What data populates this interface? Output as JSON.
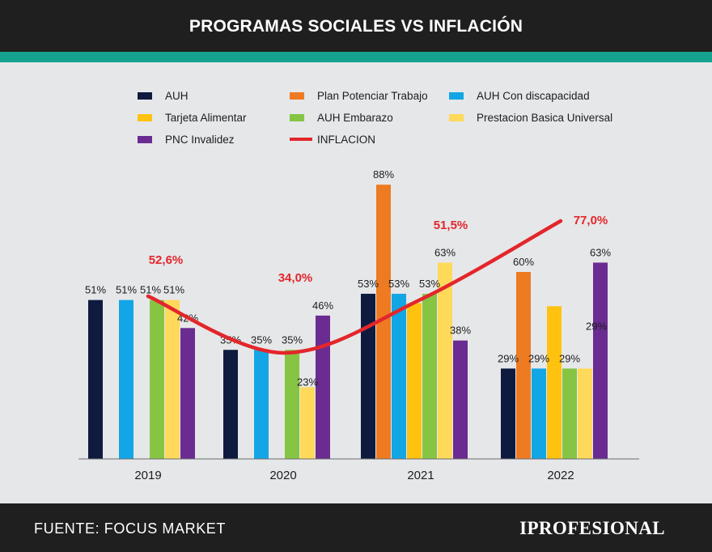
{
  "header": {
    "title": "PROGRAMAS SOCIALES VS INFLACIÓN"
  },
  "footer": {
    "source": "FUENTE: FOCUS MARKET",
    "brand": "IPROFESIONAL"
  },
  "colors": {
    "AUH": "#0e1b3f",
    "Plan Potenciar Trabajo": "#ee7a22",
    "AUH Con discapacidad": "#13a6e6",
    "Tarjeta Alimentar": "#ffc20e",
    "AUH Embarazo": "#86c543",
    "Prestacion Basica Universal": "#ffd95a",
    "PNC Invalidez": "#6a2c91",
    "INFLACION": "#e3262b"
  },
  "chart_data": {
    "type": "bar",
    "title": "PROGRAMAS SOCIALES VS INFLACIÓN",
    "xlabel": "",
    "ylabel": "",
    "categories": [
      "2019",
      "2020",
      "2021",
      "2022"
    ],
    "ylim": [
      0,
      100
    ],
    "grid": false,
    "legend_position": "top",
    "series": [
      {
        "name": "AUH",
        "values": [
          51,
          35,
          53,
          29
        ],
        "labels": [
          "51%",
          "35%",
          "53%",
          "29%"
        ]
      },
      {
        "name": "Plan Potenciar Trabajo",
        "values": [
          null,
          null,
          88,
          60
        ],
        "labels": [
          "",
          "",
          "88%",
          "60%"
        ]
      },
      {
        "name": "AUH Con discapacidad",
        "values": [
          51,
          35,
          53,
          29
        ],
        "labels": [
          "51%",
          "35%",
          "53%",
          "29%"
        ]
      },
      {
        "name": "Tarjeta Alimentar",
        "values": [
          null,
          null,
          50,
          49
        ],
        "labels": [
          "",
          "",
          "",
          ""
        ]
      },
      {
        "name": "AUH Embarazo",
        "values": [
          51,
          35,
          53,
          29
        ],
        "labels": [
          "51%",
          "35%",
          "53%",
          "29%"
        ]
      },
      {
        "name": "Prestacion Basica Universal",
        "values": [
          51,
          23,
          63,
          29
        ],
        "labels": [
          "51%",
          "23%",
          "63%",
          "29%"
        ]
      },
      {
        "name": "PNC Invalidez",
        "values": [
          42,
          46,
          38,
          63
        ],
        "labels": [
          "42%",
          "46%",
          "38%",
          "63%"
        ]
      }
    ],
    "line": {
      "name": "INFLACION",
      "values": [
        52.6,
        34.0,
        51.5,
        77.0
      ],
      "labels": [
        "52,6%",
        "34,0%",
        "51,5%",
        "77,0%"
      ]
    }
  }
}
